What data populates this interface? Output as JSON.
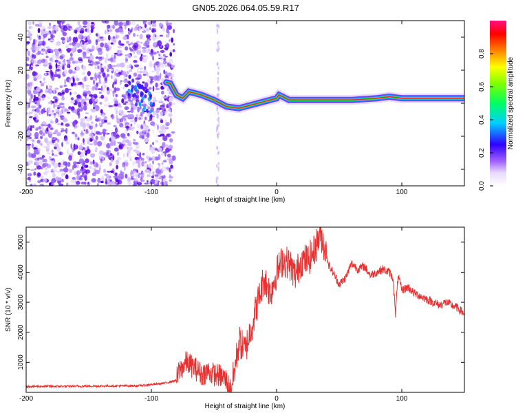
{
  "figure_title": "GN05.2026.064.05.59.R17",
  "chart_data": [
    {
      "type": "heatmap",
      "title": "GN05.2026.064.05.59.R17",
      "xlabel": "Height of straight line (km)",
      "ylabel": "Frequency (Hz)",
      "xlim": [
        -200,
        150
      ],
      "ylim": [
        -50,
        50
      ],
      "xticks": [
        -200,
        -100,
        0,
        100
      ],
      "yticks": [
        -40,
        -20,
        0,
        20,
        40
      ],
      "colorbar": {
        "label": "Normalized spectral amplitude",
        "range": [
          0,
          1
        ],
        "ticks": [
          0.0,
          0.2,
          0.4,
          0.6,
          0.8
        ]
      },
      "ridge": {
        "description": "dominant frequency track (Hz) vs height (km)",
        "x": [
          -120,
          -110,
          -100,
          -90,
          -85,
          -80,
          -75,
          -70,
          -60,
          -50,
          -40,
          -30,
          -20,
          -10,
          0,
          2,
          10,
          20,
          40,
          60,
          80,
          90,
          100,
          120,
          150
        ],
        "y": [
          8,
          5,
          8,
          13,
          12,
          5,
          3,
          7,
          5,
          2,
          -2,
          -3,
          -1,
          1,
          3,
          5,
          2,
          2,
          2,
          2,
          3,
          4,
          3,
          3,
          3
        ]
      }
    },
    {
      "type": "line",
      "xlabel": "Height of straight line (km)",
      "ylabel": "SNR (10 * v/v)",
      "xlim": [
        -200,
        150
      ],
      "ylim": [
        0,
        5500
      ],
      "xticks": [
        -200,
        -100,
        0,
        100
      ],
      "yticks": [
        1000,
        2000,
        3000,
        4000,
        5000
      ],
      "color": "#e83030",
      "series": [
        {
          "name": "SNR",
          "x": [
            -200,
            -170,
            -140,
            -110,
            -100,
            -90,
            -80,
            -78,
            -72,
            -65,
            -60,
            -55,
            -50,
            -45,
            -40,
            -37,
            -34,
            -30,
            -25,
            -20,
            -15,
            -10,
            -5,
            0,
            5,
            10,
            15,
            20,
            25,
            30,
            35,
            38,
            42,
            45,
            50,
            55,
            60,
            65,
            70,
            75,
            80,
            85,
            90,
            93,
            95,
            97,
            100,
            105,
            110,
            115,
            120,
            125,
            130,
            135,
            140,
            145,
            150
          ],
          "y": [
            200,
            200,
            210,
            220,
            260,
            300,
            400,
            700,
            1000,
            800,
            600,
            700,
            600,
            550,
            400,
            60,
            600,
            1700,
            1400,
            2200,
            3000,
            3800,
            3300,
            4000,
            4400,
            4300,
            3900,
            4400,
            4400,
            4700,
            5300,
            4900,
            4200,
            4000,
            3600,
            3800,
            4300,
            4100,
            4200,
            3900,
            4000,
            4100,
            4000,
            3800,
            2600,
            3900,
            3400,
            3500,
            3300,
            3200,
            3100,
            3000,
            2900,
            3000,
            2900,
            2800,
            2600
          ]
        }
      ]
    }
  ]
}
